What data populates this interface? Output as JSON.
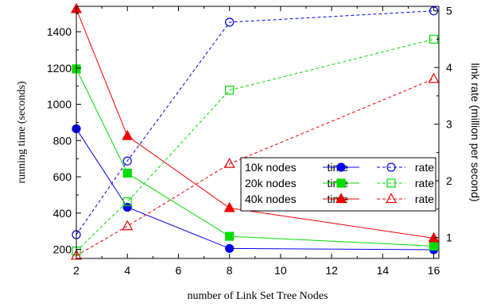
{
  "chart_data": {
    "type": "line",
    "xlabel": "number of Link Set Tree Nodes",
    "ylabel_left": "running time (seconds)",
    "ylabel_right": "link rate (million per second)",
    "x": [
      2,
      4,
      8,
      16
    ],
    "xlim": [
      2,
      16.2
    ],
    "xticks": [
      2,
      4,
      6,
      8,
      10,
      12,
      14,
      16
    ],
    "ylim_left": [
      150,
      1540
    ],
    "yticks_left": [
      200,
      400,
      600,
      800,
      1000,
      1200,
      1400
    ],
    "ylim_right": [
      0.63,
      5.08
    ],
    "yticks_right": [
      1,
      2,
      3,
      4,
      5
    ],
    "legend": {
      "position": "center-right",
      "rows": [
        {
          "label": "10k nodes",
          "time_label": "time",
          "rate_label": "rate"
        },
        {
          "label": "20k nodes",
          "time_label": "time",
          "rate_label": "rate"
        },
        {
          "label": "40k nodes",
          "time_label": "time",
          "rate_label": "rate"
        }
      ]
    },
    "series": [
      {
        "group": "10k nodes",
        "kind": "time",
        "axis": "left",
        "color": "#0000ee",
        "marker": "circle",
        "filled": true,
        "dash": false,
        "values": [
          865,
          432,
          205,
          198
        ]
      },
      {
        "group": "20k nodes",
        "kind": "time",
        "axis": "left",
        "color": "#00dd00",
        "marker": "square",
        "filled": true,
        "dash": false,
        "values": [
          1195,
          620,
          272,
          218
        ]
      },
      {
        "group": "40k nodes",
        "kind": "time",
        "axis": "left",
        "color": "#ee0000",
        "marker": "triangle",
        "filled": true,
        "dash": false,
        "values": [
          1525,
          825,
          428,
          262
        ]
      },
      {
        "group": "10k nodes",
        "kind": "rate",
        "axis": "right",
        "color": "#0000ee",
        "marker": "circle",
        "filled": false,
        "dash": true,
        "values": [
          1.05,
          2.35,
          4.8,
          5.0
        ]
      },
      {
        "group": "20k nodes",
        "kind": "rate",
        "axis": "right",
        "color": "#00dd00",
        "marker": "square",
        "filled": false,
        "dash": true,
        "values": [
          0.76,
          1.63,
          3.6,
          4.5
        ]
      },
      {
        "group": "40k nodes",
        "kind": "rate",
        "axis": "right",
        "color": "#ee0000",
        "marker": "triangle",
        "filled": false,
        "dash": true,
        "values": [
          0.68,
          1.2,
          2.3,
          3.8
        ]
      }
    ]
  }
}
